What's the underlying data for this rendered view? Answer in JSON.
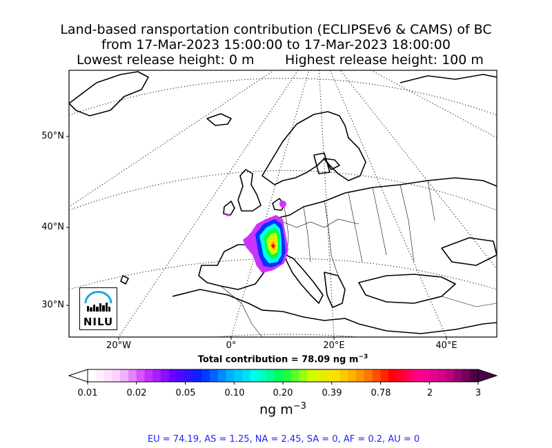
{
  "title": {
    "line1": "Land-based ransportation contribution (ECLIPSEv6 & CAMS) of BC",
    "line2": "from 17-Mar-2023 15:00:00 to 17-Mar-2023 18:00:00",
    "line3_left": "Lowest release height: 0 m",
    "line3_right": "Highest release height: 100 m"
  },
  "map": {
    "lat_labels": [
      "50°N",
      "40°N",
      "30°N"
    ],
    "lon_labels": [
      "20°W",
      "0°",
      "20°E",
      "40°E"
    ],
    "logo_text": "NILU",
    "plume_colors": [
      "#cc33ff",
      "#0033ff",
      "#00ffee",
      "#00ff44",
      "#ccff00",
      "#ffdd00",
      "#ff8800",
      "#ff0000"
    ]
  },
  "total": "Total contribution = 78.09 ng m",
  "total_sup": "−3",
  "colorbar": {
    "tick_labels": [
      "0.01",
      "0.02",
      "0.05",
      "0.10",
      "0.20",
      "0.39",
      "0.78",
      "2",
      "3"
    ],
    "unit": "ng m",
    "unit_sup": "−3"
  },
  "regions": "EU = 74.19,  AS = 1.25,  NA = 2.45,  SA = 0,  AF = 0.2,  AU = 0"
}
